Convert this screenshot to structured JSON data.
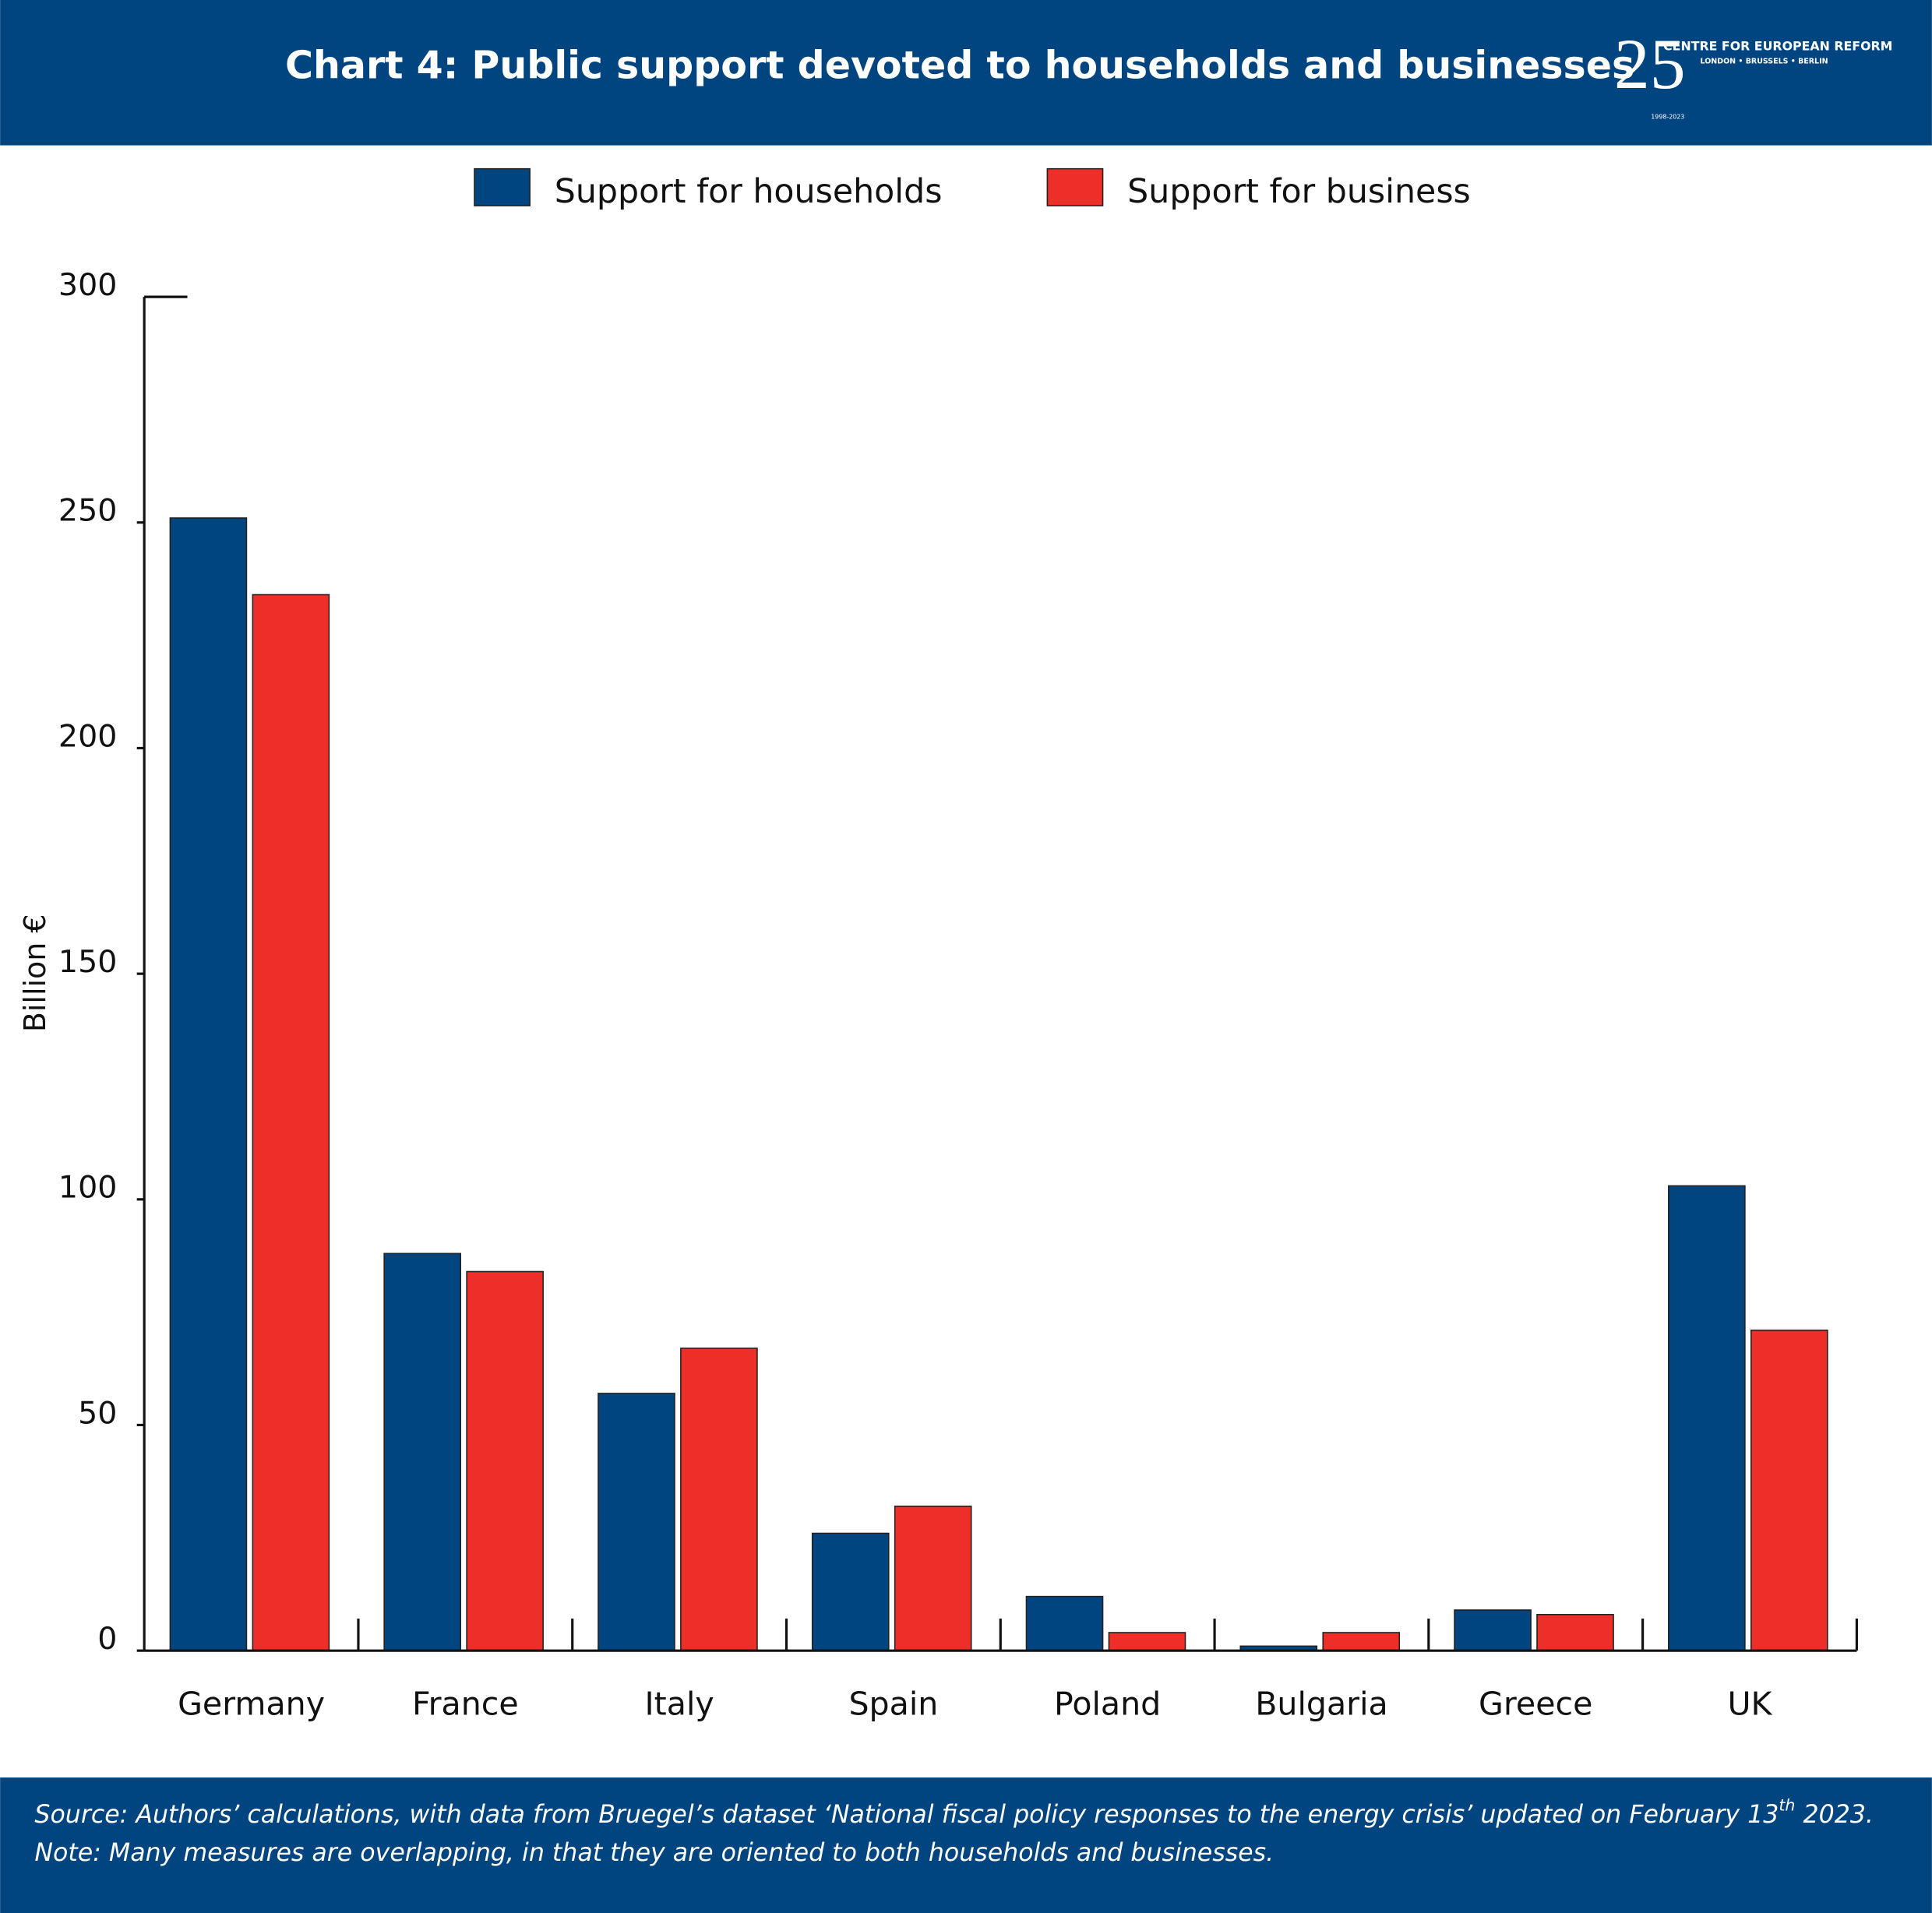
{
  "chart_data": {
    "type": "bar",
    "title": "Chart 4: Public support devoted to households and businesses",
    "logo": {
      "number": "25",
      "name": "CENTRE FOR EUROPEAN REFORM",
      "cities": "LONDON • BRUSSELS • BERLIN",
      "years": "1998-2023"
    },
    "y_label": "Billion €",
    "categories": [
      "Germany",
      "France",
      "Italy",
      "Spain",
      "Poland",
      "Bulgaria",
      "Greece",
      "UK"
    ],
    "series": [
      {
        "name": "Support for households",
        "color": "#00457f",
        "values": [
          251,
          88,
          57,
          26,
          12,
          1,
          9,
          103
        ]
      },
      {
        "name": "Support for business",
        "color": "#ee2e28",
        "values": [
          234,
          84,
          67,
          32,
          4,
          4,
          8,
          71
        ]
      }
    ],
    "ylim": [
      0,
      300
    ],
    "yticks": [
      0,
      50,
      100,
      150,
      200,
      250,
      300
    ],
    "source": [
      "Source: Authors’ calculations, with data from Bruegel’s dataset ‘National fiscal policy responses to the energy crisis’ updated on  February 13",
      "th",
      " 2023."
    ],
    "note": "Note: Many measures are overlapping, in that they are oriented to both households and businesses."
  }
}
